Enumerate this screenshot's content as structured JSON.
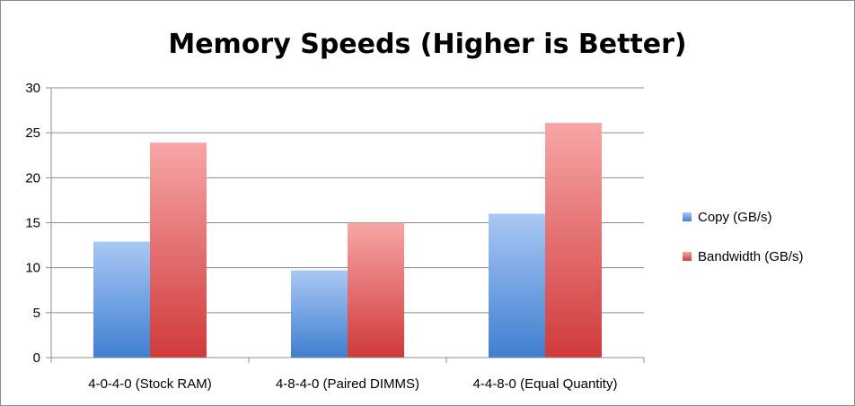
{
  "chart_data": {
    "type": "bar",
    "title": "Memory Speeds (Higher is Better)",
    "xlabel": "",
    "ylabel": "",
    "categories": [
      "4-0-4-0 (Stock RAM)",
      "4-8-4-0 (Paired DIMMS)",
      "4-4-8-0 (Equal Quantity)"
    ],
    "series": [
      {
        "name": "Copy (GB/s)",
        "values": [
          12.9,
          9.7,
          16.0
        ],
        "color_top": "#a9c8f5",
        "color_bottom": "#3f7fd0"
      },
      {
        "name": "Bandwidth (GB/s)",
        "values": [
          23.9,
          15.0,
          26.1
        ],
        "color_top": "#f7a6a6",
        "color_bottom": "#d03a3a"
      }
    ],
    "ylim": [
      0,
      30
    ],
    "yticks": [
      "0",
      "5",
      "10",
      "15",
      "20",
      "25",
      "30"
    ],
    "grid": true,
    "legend_position": "right"
  }
}
